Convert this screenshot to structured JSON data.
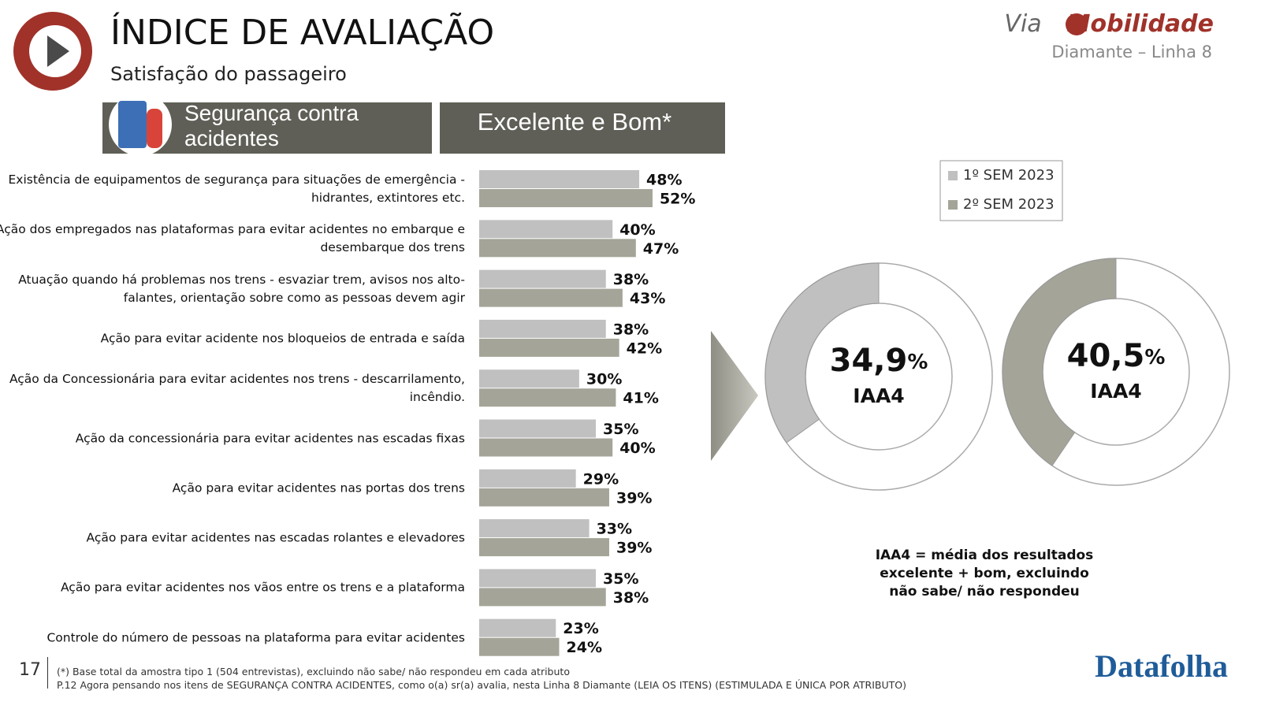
{
  "header": {
    "title": "ÍNDICE DE AVALIAÇÃO",
    "subtitle": "Satisfação do passageiro",
    "brand_via": "Via",
    "brand_mobilidade": "Mobilidade",
    "line": "Diamante – Linha 8"
  },
  "section_label": "Segurança contra acidentes",
  "column_label": "Excelente e Bom*",
  "chart_data": [
    {
      "type": "bar",
      "categories": [
        "Existência de equipamentos de segurança para situações de emergência - hidrantes, extintores etc.",
        "Ação dos empregados nas plataformas para evitar acidentes no embarque e desembarque dos trens",
        "Atuação quando há problemas nos trens - esvaziar trem, avisos nos alto-falantes, orientação sobre como as pessoas devem agir",
        "Ação para evitar acidente nos bloqueios de entrada e saída",
        "Ação da Concessionária para evitar acidentes nos trens - descarrilamento, incêndio.",
        "Ação da concessionária para evitar acidentes nas escadas fixas",
        "Ação para evitar acidentes nas portas dos trens",
        "Ação para evitar acidentes nas escadas rolantes e elevadores",
        "Ação para evitar acidentes nos vãos entre os trens e a plataforma",
        "Controle do número de pessoas na plataforma para evitar acidentes"
      ],
      "series": [
        {
          "name": "1º SEM 2023",
          "color": "#c0c0c0",
          "values": [
            48,
            40,
            38,
            38,
            30,
            35,
            29,
            33,
            35,
            23
          ],
          "value_labels": [
            "48%",
            "40%",
            "38%",
            "38%",
            "30%",
            "35%",
            "29%",
            "33%",
            "35%",
            "23%"
          ]
        },
        {
          "name": "2º SEM 2023",
          "color": "#a4a498",
          "values": [
            52,
            47,
            43,
            42,
            41,
            40,
            39,
            39,
            38,
            24
          ],
          "value_labels": [
            "52%",
            "47%",
            "43%",
            "42%",
            "41%",
            "40%",
            "39%",
            "39%",
            "38%",
            "24%"
          ]
        }
      ],
      "xlim": [
        0,
        100
      ]
    },
    {
      "type": "donut",
      "values": [
        34.9,
        40.5
      ],
      "value_labels": [
        "34,9",
        "40,5"
      ],
      "unit": "%",
      "center_labels": [
        "IAA4",
        "IAA4"
      ],
      "colors": [
        "#c0c0c0",
        "#a4a498"
      ]
    }
  ],
  "iaa_note": "IAA4 = média dos resultados excelente + bom, excluindo não sabe/ não respondeu",
  "page_number": "17",
  "footnotes": [
    "(*) Base total da amostra tipo 1 (504 entrevistas), excluindo não sabe/ não respondeu em cada atributo",
    "P.12 Agora pensando nos itens de SEGURANÇA CONTRA ACIDENTES, como o(a) sr(a) avalia, nesta Linha 8 Diamante (LEIA OS ITENS) (ESTIMULADA E ÚNICA POR ATRIBUTO)"
  ],
  "datafolha": "Datafolha"
}
